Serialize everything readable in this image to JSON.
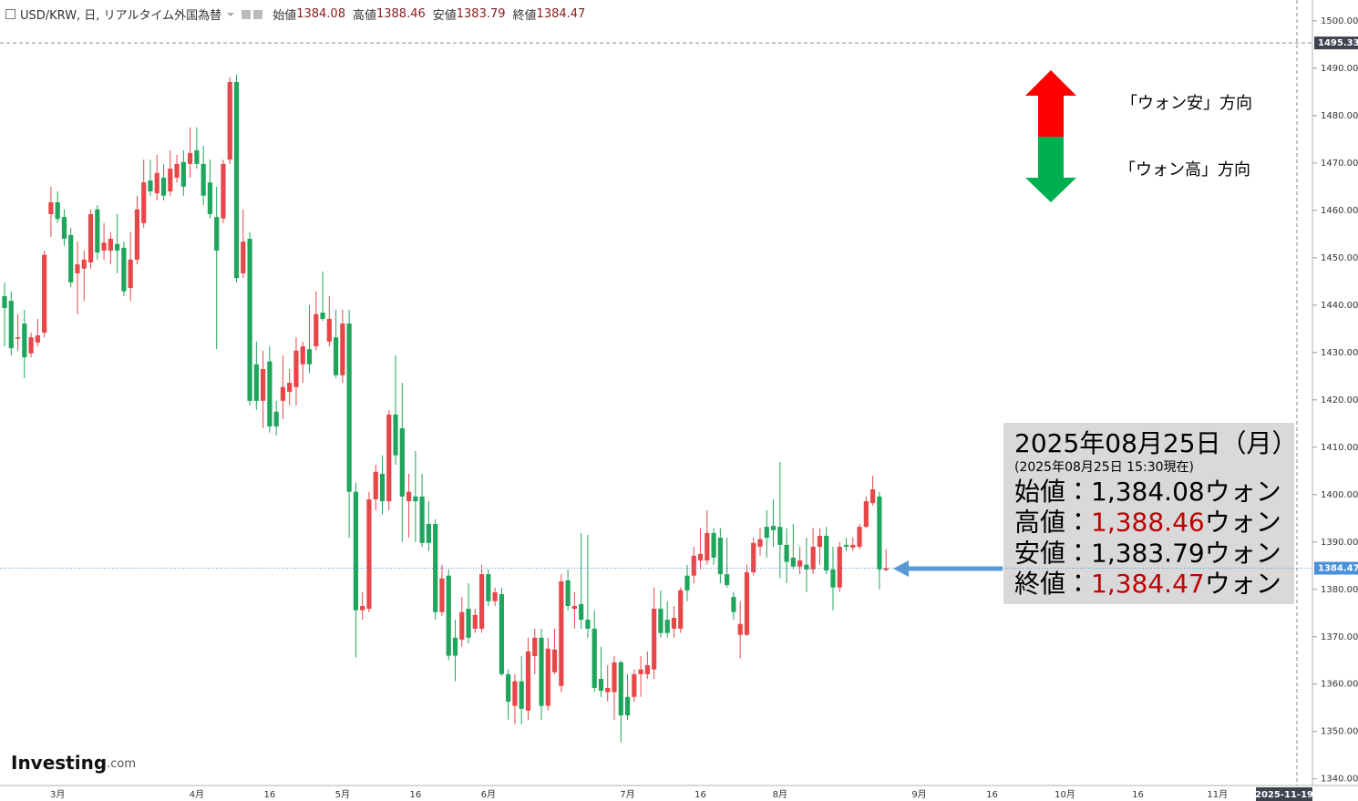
{
  "chart_data": {
    "type": "candlestick",
    "title": "USD/KRW, 日, リアルタイム外国為替",
    "header": [
      {
        "label": "始値",
        "value": 1384.08
      },
      {
        "label": "高値",
        "value": 1388.46
      },
      {
        "label": "安値",
        "value": 1383.79
      },
      {
        "label": "終値",
        "value": 1384.47
      }
    ],
    "categories": [
      null,
      null,
      null,
      null,
      null,
      null,
      null,
      null,
      "3月",
      null,
      null,
      null,
      null,
      null,
      null,
      null,
      null,
      null,
      null,
      null,
      null,
      null,
      null,
      null,
      null,
      null,
      null,
      null,
      null,
      "4月",
      null,
      null,
      null,
      null,
      null,
      null,
      null,
      null,
      null,
      null,
      "16",
      null,
      null,
      null,
      null,
      null,
      null,
      null,
      null,
      null,
      null,
      "5月",
      null,
      null,
      null,
      null,
      null,
      null,
      null,
      null,
      null,
      null,
      "16",
      null,
      null,
      null,
      null,
      null,
      null,
      null,
      null,
      null,
      null,
      "6月",
      null,
      null,
      null,
      null,
      null,
      null,
      null,
      null,
      null,
      null,
      null,
      null,
      null,
      null,
      null,
      null,
      null,
      null,
      null,
      null,
      "7月",
      null,
      null,
      null,
      null,
      null,
      null,
      null,
      null,
      null,
      null,
      "16",
      null,
      null,
      null,
      null,
      null,
      null,
      null,
      null,
      null,
      null,
      null,
      "8月",
      null,
      null,
      null,
      null,
      null,
      null,
      null,
      null,
      null,
      null,
      null,
      null,
      null,
      null,
      null,
      null,
      null,
      null,
      null,
      null,
      "9月",
      null,
      null,
      null,
      null,
      null,
      null,
      null,
      null,
      null,
      null,
      "16",
      null,
      null,
      null,
      null,
      null,
      null,
      null,
      null,
      null,
      null,
      "10月",
      null,
      null,
      null,
      null,
      null,
      null,
      null,
      null,
      null,
      null,
      "16",
      null,
      null,
      null,
      null,
      null,
      null,
      null,
      null,
      null,
      null,
      null,
      "11月",
      null,
      null,
      null,
      null,
      null,
      null,
      null,
      null,
      null,
      null,
      null,
      "2025-11-19"
    ],
    "open": [
      1441.9,
      1440.9,
      1432.9,
      1436.1,
      1429.8,
      1432.1,
      1434.2,
      1459.2,
      1461.7,
      1458.6,
      1454.8,
      1446.7,
      1447.7,
      1449.0,
      1460.2,
      1451.5,
      1451.5,
      1452.9,
      1452.1,
      1443.6,
      1449.6,
      1457.3,
      1466.3,
      1463.6,
      1466.9,
      1464.0,
      1466.9,
      1470.2,
      1469.8,
      1472.7,
      1469.8,
      1465.9,
      1458.6,
      1458.3,
      1470.7,
      1487.1,
      1446.7,
      1454.0,
      1427.5,
      1419.8,
      1428.1,
      1417.5,
      1419.8,
      1421.7,
      1422.7,
      1427.5,
      1430.7,
      1431.3,
      1438.4,
      1432.3,
      1433.2,
      1425.2,
      1436.1,
      1400.6,
      1375.6,
      1375.9,
      1399.0,
      1404.4,
      1398.6,
      1416.9,
      1414.0,
      1398.6,
      1399.6,
      1399.6,
      1393.8,
      1393.8,
      1375.2,
      1382.9,
      1369.8,
      1369.4,
      1375.9,
      1371.7,
      1371.7,
      1383.2,
      1377.5,
      1379.0,
      1362.1,
      1355.4,
      1360.6,
      1354.4,
      1365.9,
      1369.8,
      1355.4,
      1362.5,
      1359.6,
      1381.9,
      1375.9,
      1376.9,
      1373.6,
      1371.7,
      1361.1,
      1358.3,
      1358.3,
      1364.6,
      1357.3,
      1357.3,
      1362.1,
      1362.1,
      1363.1,
      1375.9,
      1373.6,
      1371.7,
      1371.7,
      1382.9,
      1382.9,
      1386.1,
      1386.1,
      1391.9,
      1390.9,
      1383.2,
      1378.4,
      1370.4,
      1370.4,
      1383.6,
      1389.0,
      1393.2,
      1393.4,
      1393.2,
      1389.4,
      1386.7,
      1384.8,
      1385.2,
      1384.2,
      1389.0,
      1391.3,
      1384.2,
      1380.4,
      1389.4,
      1388.8,
      1389.0,
      1393.2,
      1398.2,
      1399.6,
      1384.08,
      null,
      null,
      null,
      null,
      null,
      null,
      null,
      null,
      null,
      null,
      null,
      null,
      null,
      null,
      null,
      null,
      null,
      null,
      null,
      null,
      null,
      null,
      null,
      null,
      null,
      null,
      null,
      null,
      null,
      null,
      null,
      null,
      null,
      null,
      null,
      null,
      null,
      null,
      null,
      null,
      null,
      null,
      null,
      null,
      null,
      null,
      null,
      null,
      null,
      null,
      null,
      null,
      null,
      null,
      null,
      null,
      null,
      null,
      null,
      null,
      null,
      null
    ],
    "high": [
      1444.8,
      1442.9,
      1438.1,
      1439.0,
      1434.2,
      1437.1,
      1451.5,
      1465.0,
      1464.0,
      1460.2,
      1456.3,
      1453.4,
      1451.5,
      1460.2,
      1461.1,
      1457.3,
      1455.4,
      1459.2,
      1453.4,
      1455.4,
      1463.1,
      1470.7,
      1470.7,
      1471.7,
      1469.8,
      1472.7,
      1471.7,
      1472.7,
      1477.5,
      1477.5,
      1473.6,
      1470.7,
      1465.0,
      1470.7,
      1488.1,
      1488.6,
      1460.2,
      1455.4,
      1432.3,
      1430.4,
      1431.3,
      1419.8,
      1429.4,
      1426.5,
      1433.2,
      1432.3,
      1440.0,
      1442.9,
      1447.1,
      1441.9,
      1439.0,
      1439.0,
      1439.0,
      1402.5,
      1379.4,
      1400.6,
      1406.3,
      1408.3,
      1417.9,
      1429.4,
      1423.6,
      1404.4,
      1409.2,
      1404.4,
      1398.6,
      1394.8,
      1385.2,
      1384.2,
      1373.6,
      1378.4,
      1381.3,
      1375.9,
      1385.2,
      1384.2,
      1380.4,
      1380.4,
      1363.1,
      1362.1,
      1365.9,
      1369.8,
      1371.7,
      1371.7,
      1369.8,
      1371.7,
      1383.2,
      1384.2,
      1379.4,
      1391.9,
      1391.5,
      1375.6,
      1367.9,
      1364.0,
      1365.9,
      1365.0,
      1362.1,
      1363.1,
      1365.9,
      1366.9,
      1380.4,
      1379.8,
      1377.5,
      1376.5,
      1380.4,
      1385.2,
      1389.0,
      1392.9,
      1396.7,
      1392.9,
      1392.9,
      1390.9,
      1379.4,
      1377.5,
      1385.2,
      1390.9,
      1392.9,
      1396.7,
      1399.0,
      1406.9,
      1392.9,
      1393.8,
      1389.0,
      1390.9,
      1392.9,
      1392.9,
      1393.2,
      1389.0,
      1390.0,
      1390.9,
      1390.9,
      1393.8,
      1399.6,
      1404.0,
      1400.6,
      1388.46,
      null,
      null,
      null,
      null,
      null,
      null,
      null,
      null,
      null,
      null,
      null,
      null,
      null,
      null,
      null,
      null,
      null,
      null,
      null,
      null,
      null,
      null,
      null,
      null,
      null,
      null,
      null,
      null,
      null,
      null,
      null,
      null,
      null,
      null,
      null,
      null,
      null,
      null,
      null,
      null,
      null,
      null,
      null,
      null,
      null,
      null,
      null,
      null,
      null,
      null,
      null,
      null,
      null,
      null,
      null,
      null,
      null,
      null,
      null,
      null,
      null,
      null
    ],
    "low": [
      1431.3,
      1429.4,
      1430.4,
      1424.6,
      1429.0,
      1431.3,
      1433.2,
      1454.4,
      1457.3,
      1452.5,
      1443.8,
      1438.1,
      1440.9,
      1447.7,
      1449.6,
      1449.6,
      1448.6,
      1446.7,
      1441.9,
      1440.9,
      1448.6,
      1456.3,
      1463.1,
      1462.1,
      1462.1,
      1463.1,
      1465.9,
      1463.1,
      1466.9,
      1468.8,
      1461.1,
      1458.3,
      1430.7,
      1457.3,
      1469.8,
      1444.8,
      1445.7,
      1418.8,
      1417.9,
      1414.0,
      1413.1,
      1412.5,
      1415.9,
      1418.8,
      1418.8,
      1423.6,
      1425.6,
      1430.4,
      1436.7,
      1431.3,
      1424.6,
      1423.6,
      1390.9,
      1365.6,
      1373.6,
      1375.2,
      1396.7,
      1395.8,
      1396.7,
      1406.3,
      1390.0,
      1390.9,
      1390.0,
      1389.0,
      1388.1,
      1373.6,
      1374.4,
      1365.0,
      1360.6,
      1367.9,
      1368.6,
      1370.8,
      1370.8,
      1376.5,
      1376.5,
      1361.7,
      1352.5,
      1351.5,
      1351.5,
      1352.5,
      1362.1,
      1352.5,
      1354.4,
      1362.1,
      1358.3,
      1375.6,
      1371.7,
      1371.7,
      1369.8,
      1358.3,
      1357.3,
      1356.3,
      1352.5,
      1347.7,
      1352.5,
      1356.3,
      1357.3,
      1361.1,
      1361.1,
      1369.8,
      1369.8,
      1369.8,
      1370.8,
      1377.5,
      1381.3,
      1384.2,
      1385.2,
      1385.2,
      1381.3,
      1380.4,
      1373.6,
      1365.4,
      1370.2,
      1382.9,
      1387.1,
      1386.7,
      1389.0,
      1382.3,
      1381.3,
      1384.2,
      1383.2,
      1379.4,
      1383.2,
      1385.2,
      1383.2,
      1375.6,
      1379.4,
      1388.1,
      1388.1,
      1388.5,
      1392.9,
      1397.7,
      1380.0,
      1383.79,
      null,
      null,
      null,
      null,
      null,
      null,
      null,
      null,
      null,
      null,
      null,
      null,
      null,
      null,
      null,
      null,
      null,
      null,
      null,
      null,
      null,
      null,
      null,
      null,
      null,
      null,
      null,
      null,
      null,
      null,
      null,
      null,
      null,
      null,
      null,
      null,
      null,
      null,
      null,
      null,
      null,
      null,
      null,
      null,
      null,
      null,
      null,
      null,
      null,
      null,
      null,
      null,
      null,
      null,
      null,
      null,
      null,
      null,
      null,
      null,
      null,
      null
    ],
    "close": [
      1439.4,
      1430.9,
      1433.2,
      1429.0,
      1433.2,
      1433.6,
      1450.6,
      1461.7,
      1458.2,
      1454.0,
      1444.8,
      1448.6,
      1449.6,
      1459.2,
      1451.1,
      1453.2,
      1454.0,
      1451.5,
      1442.9,
      1449.6,
      1460.2,
      1465.9,
      1464.0,
      1467.9,
      1463.1,
      1468.8,
      1469.8,
      1465.0,
      1472.1,
      1469.8,
      1463.1,
      1459.2,
      1451.5,
      1469.8,
      1487.1,
      1445.7,
      1453.4,
      1419.8,
      1419.8,
      1426.5,
      1414.4,
      1414.4,
      1422.7,
      1423.6,
      1430.4,
      1431.3,
      1427.5,
      1438.1,
      1437.1,
      1437.1,
      1425.2,
      1436.1,
      1400.6,
      1375.6,
      1376.5,
      1399.0,
      1404.8,
      1398.6,
      1416.9,
      1408.3,
      1399.6,
      1400.6,
      1398.6,
      1389.8,
      1389.8,
      1375.2,
      1382.3,
      1366.0,
      1366.0,
      1375.2,
      1369.8,
      1374.6,
      1383.2,
      1377.5,
      1379.4,
      1362.1,
      1356.3,
      1360.6,
      1354.8,
      1366.9,
      1369.8,
      1355.4,
      1367.5,
      1367.3,
      1381.7,
      1376.5,
      1376.5,
      1373.6,
      1371.7,
      1359.2,
      1358.6,
      1359.2,
      1364.6,
      1353.4,
      1353.4,
      1362.1,
      1363.1,
      1364.0,
      1375.9,
      1370.8,
      1370.8,
      1374.0,
      1379.8,
      1379.8,
      1387.1,
      1387.5,
      1391.9,
      1386.7,
      1383.2,
      1380.9,
      1375.2,
      1372.7,
      1383.6,
      1389.8,
      1390.6,
      1390.9,
      1392.5,
      1389.4,
      1385.8,
      1384.8,
      1386.1,
      1384.2,
      1389.0,
      1391.3,
      1384.0,
      1380.4,
      1389.0,
      1389.0,
      1389.4,
      1393.2,
      1398.6,
      1401.1,
      1384.2,
      1384.47,
      null,
      null,
      null,
      null,
      null,
      null,
      null,
      null,
      null,
      null,
      null,
      null,
      null,
      null,
      null,
      null,
      null,
      null,
      null,
      null,
      null,
      null,
      null,
      null,
      null,
      null,
      null,
      null,
      null,
      null,
      null,
      null,
      null,
      null,
      null,
      null,
      null,
      null,
      null,
      null,
      null,
      null,
      null,
      null,
      null,
      null,
      null,
      null,
      null,
      null,
      null,
      null,
      null,
      null,
      null,
      null,
      null,
      null,
      null,
      null,
      null,
      null
    ],
    "up_color": "#e8474a",
    "down_color": "#1fa55c",
    "ylim": [
      1338.6,
      1504.4
    ],
    "yticks": [
      {
        "value": 1340,
        "label": "1340.00"
      },
      {
        "value": 1350,
        "label": "1350.00"
      },
      {
        "value": 1360,
        "label": "1360.00"
      },
      {
        "value": 1370,
        "label": "1370.00"
      },
      {
        "value": 1380,
        "label": "1380.00"
      },
      {
        "value": 1390,
        "label": "1390.00"
      },
      {
        "value": 1400,
        "label": "1400.00"
      },
      {
        "value": 1410,
        "label": "1410.00"
      },
      {
        "value": 1420,
        "label": "1420.00"
      },
      {
        "value": 1430,
        "label": "1430.00"
      },
      {
        "value": 1440,
        "label": "1440.00"
      },
      {
        "value": 1450,
        "label": "1450.00"
      },
      {
        "value": 1460,
        "label": "1460.00"
      },
      {
        "value": 1470,
        "label": "1470.00"
      },
      {
        "value": 1480,
        "label": "1480.00"
      },
      {
        "value": 1490,
        "label": "1490.00"
      },
      {
        "value": 1500,
        "label": "1500.00"
      }
    ],
    "crosshair_y": 1495.33,
    "last_price_color": "#4a90d9",
    "direction_legend": [
      {
        "text": "「ウォン安」方向",
        "color": "#ff0000"
      },
      {
        "text": "「ウォン高」方向",
        "color": "#00b050"
      }
    ],
    "info_box": {
      "date": "2025年08月25日（月）",
      "note": "(2025年08月25日 15:30現在)",
      "rows": [
        {
          "label": "始値：",
          "value": 1384.08,
          "value_label": "1,384.08",
          "unit": "ウォン",
          "color": "#000000"
        },
        {
          "label": "高値：",
          "value": 1388.46,
          "value_label": "1,388.46",
          "unit": "ウォン",
          "color": "#c00000"
        },
        {
          "label": "安値：",
          "value": 1383.79,
          "value_label": "1,383.79",
          "unit": "ウォン",
          "color": "#000000"
        },
        {
          "label": "終値：",
          "value": 1384.47,
          "value_label": "1,384.47",
          "unit": "ウォン",
          "color": "#c00000"
        }
      ]
    },
    "logo": "Investing",
    "logo_suffix": ".com"
  }
}
